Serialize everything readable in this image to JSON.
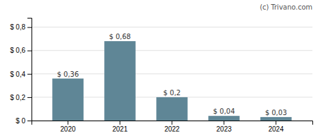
{
  "chart_data": {
    "type": "bar",
    "categories": [
      "2020",
      "2021",
      "2022",
      "2023",
      "2024"
    ],
    "values": [
      0.36,
      0.68,
      0.2,
      0.04,
      0.03
    ],
    "value_labels": [
      "$ 0,36",
      "$ 0,68",
      "$ 0,2",
      "$ 0,04",
      "$ 0,03"
    ],
    "color": "#5f8696",
    "ylim": [
      0,
      0.88
    ],
    "yticks": [
      {
        "value": 0,
        "label": "$ 0"
      },
      {
        "value": 0.2,
        "label": "$ 0,2"
      },
      {
        "value": 0.4,
        "label": "$ 0,4"
      },
      {
        "value": 0.6,
        "label": "$ 0,6"
      },
      {
        "value": 0.8,
        "label": "$ 0,8"
      }
    ],
    "grid": true,
    "annotation": "(c) Trivano.com"
  }
}
